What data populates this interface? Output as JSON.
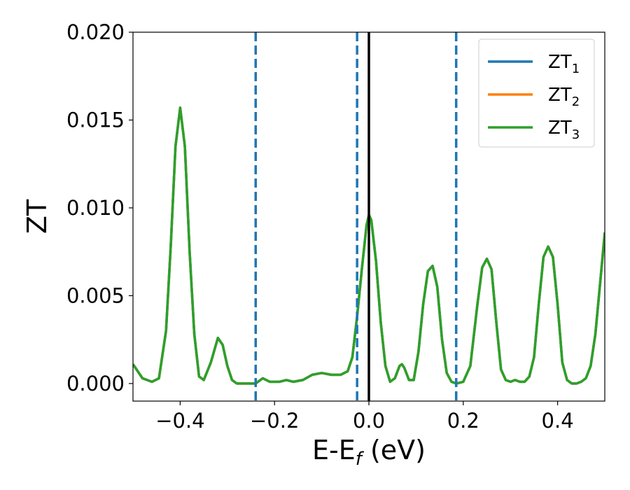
{
  "chart_data": {
    "type": "line",
    "xlabel": "E-E_f (eV)",
    "xlabel_parts": {
      "main": "E-E",
      "sub": "f",
      "suffix": " (eV)"
    },
    "ylabel": "ZT",
    "xlim": [
      -0.5,
      0.5
    ],
    "ylim": [
      -0.001,
      0.02
    ],
    "xticks": [
      -0.4,
      -0.2,
      0.0,
      0.2,
      0.4
    ],
    "xtick_labels": [
      "−0.4",
      "−0.2",
      "0.0",
      "0.2",
      "0.4"
    ],
    "yticks": [
      0.0,
      0.005,
      0.01,
      0.015,
      0.02
    ],
    "ytick_labels": [
      "0.000",
      "0.005",
      "0.010",
      "0.015",
      "0.020"
    ],
    "grid": false,
    "legend_position": "top-right",
    "vlines": [
      {
        "x": -0.24,
        "style": "dashed",
        "color": "#1f77b4"
      },
      {
        "x": -0.025,
        "style": "dashed",
        "color": "#1f77b4"
      },
      {
        "x": 0.0,
        "style": "solid",
        "color": "#000000"
      },
      {
        "x": 0.185,
        "style": "dashed",
        "color": "#1f77b4"
      }
    ],
    "series": [
      {
        "name": "ZT",
        "sub": "1",
        "color": "#1f77b4"
      },
      {
        "name": "ZT",
        "sub": "2",
        "color": "#ff7f0e"
      },
      {
        "name": "ZT",
        "sub": "3",
        "color": "#2ca02c"
      }
    ],
    "x": [
      -0.5,
      -0.48,
      -0.46,
      -0.445,
      -0.43,
      -0.42,
      -0.41,
      -0.4,
      -0.39,
      -0.38,
      -0.37,
      -0.36,
      -0.35,
      -0.335,
      -0.32,
      -0.31,
      -0.3,
      -0.29,
      -0.28,
      -0.27,
      -0.26,
      -0.24,
      -0.225,
      -0.21,
      -0.19,
      -0.175,
      -0.16,
      -0.14,
      -0.12,
      -0.1,
      -0.08,
      -0.06,
      -0.045,
      -0.035,
      -0.025,
      -0.015,
      -0.005,
      0.0,
      0.005,
      0.015,
      0.025,
      0.035,
      0.045,
      0.055,
      0.065,
      0.07,
      0.075,
      0.085,
      0.095,
      0.105,
      0.115,
      0.125,
      0.135,
      0.145,
      0.155,
      0.165,
      0.175,
      0.185,
      0.2,
      0.215,
      0.23,
      0.24,
      0.25,
      0.26,
      0.27,
      0.28,
      0.29,
      0.3,
      0.31,
      0.32,
      0.33,
      0.34,
      0.35,
      0.36,
      0.37,
      0.38,
      0.39,
      0.4,
      0.41,
      0.42,
      0.43,
      0.44,
      0.45,
      0.46,
      0.47,
      0.48,
      0.49,
      0.5
    ],
    "values": [
      0.0011,
      0.0003,
      0.0001,
      0.0003,
      0.003,
      0.0078,
      0.0135,
      0.0157,
      0.0135,
      0.0075,
      0.0028,
      0.0004,
      0.0002,
      0.0012,
      0.0026,
      0.0022,
      0.001,
      0.0002,
      0.0,
      0.0,
      0.0,
      0.0,
      0.0003,
      0.0001,
      0.0001,
      0.0002,
      0.0001,
      0.0002,
      0.0005,
      0.0006,
      0.0005,
      0.0005,
      0.0007,
      0.0015,
      0.0038,
      0.0065,
      0.009,
      0.0096,
      0.0093,
      0.007,
      0.0035,
      0.001,
      0.0001,
      0.0003,
      0.001,
      0.0011,
      0.0009,
      0.0002,
      0.0002,
      0.0018,
      0.0045,
      0.0064,
      0.0067,
      0.0055,
      0.0025,
      0.0006,
      0.0001,
      0.0,
      0.0001,
      0.001,
      0.0045,
      0.0066,
      0.0071,
      0.0065,
      0.0035,
      0.0008,
      0.0002,
      0.0001,
      0.0002,
      0.0001,
      0.0001,
      0.0004,
      0.0015,
      0.0045,
      0.0072,
      0.0078,
      0.0072,
      0.0045,
      0.0012,
      0.0002,
      0.0,
      0.0,
      0.0001,
      0.0003,
      0.001,
      0.0028,
      0.0057,
      0.0086
    ]
  }
}
